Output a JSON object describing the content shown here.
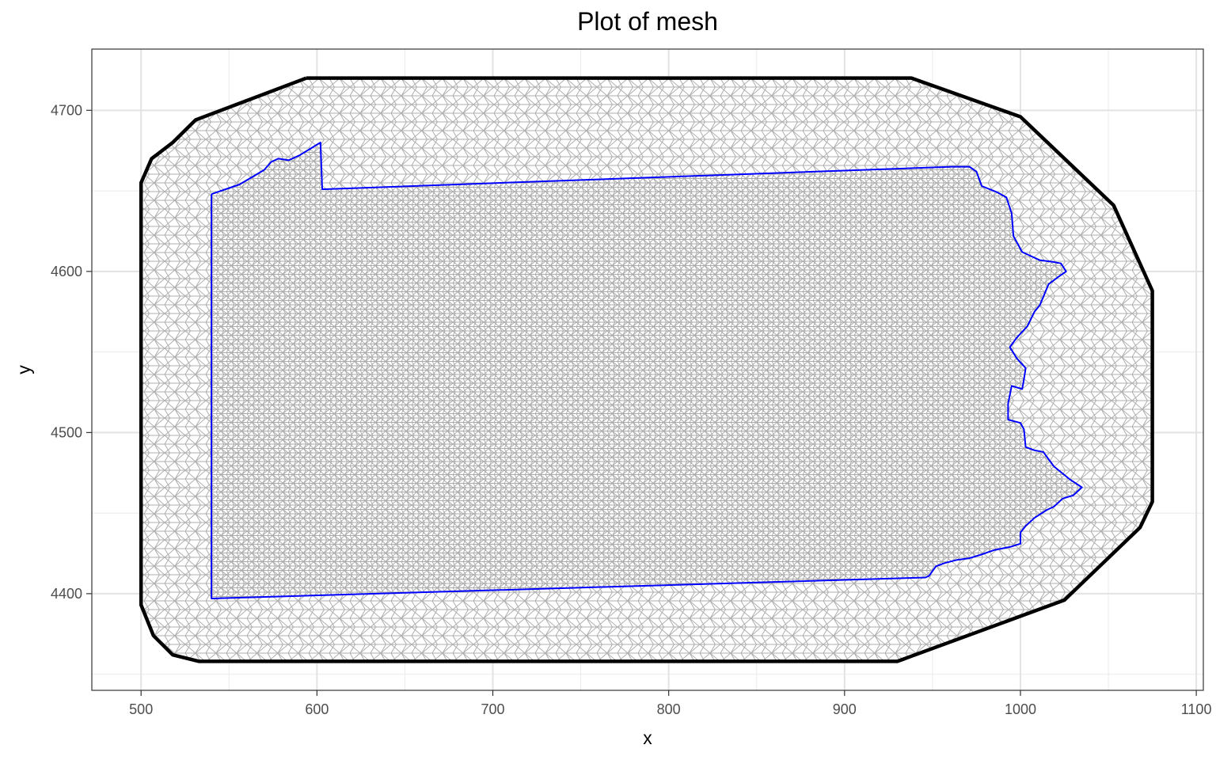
{
  "chart_data": {
    "type": "mesh",
    "title": "Plot of mesh",
    "xlabel": "x",
    "ylabel": "y",
    "xlim": [
      472,
      1104
    ],
    "ylim": [
      4340,
      4738
    ],
    "x_ticks": [
      500,
      600,
      700,
      800,
      900,
      1000,
      1100
    ],
    "x_tick_labels": [
      "500",
      "600",
      "700",
      "800",
      "900",
      "1000",
      "1100"
    ],
    "y_ticks": [
      4400,
      4500,
      4600,
      4700
    ],
    "y_tick_labels": [
      "4400",
      "4500",
      "4600",
      "4700"
    ],
    "grid": true,
    "mesh_color": "#aaaaaa",
    "outer_boundary_color": "#000000",
    "inner_boundary_color": "#0000ff",
    "outer_boundary": [
      [
        594,
        4720
      ],
      [
        938,
        4720
      ],
      [
        1000,
        4696
      ],
      [
        1053,
        4641
      ],
      [
        1075,
        4588
      ],
      [
        1075,
        4457
      ],
      [
        1068,
        4441
      ],
      [
        1025,
        4396
      ],
      [
        930,
        4358
      ],
      [
        533,
        4358
      ],
      [
        518,
        4362
      ],
      [
        507,
        4374
      ],
      [
        500,
        4393
      ],
      [
        500,
        4655
      ],
      [
        506,
        4670
      ],
      [
        518,
        4680
      ],
      [
        531,
        4694
      ],
      [
        594,
        4720
      ]
    ],
    "inner_boundary": [
      [
        540,
        4648
      ],
      [
        556,
        4654
      ],
      [
        570,
        4663
      ],
      [
        574,
        4668
      ],
      [
        578,
        4670
      ],
      [
        584,
        4669
      ],
      [
        590,
        4672
      ],
      [
        602,
        4680
      ],
      [
        603,
        4651
      ],
      [
        961,
        4665
      ],
      [
        971,
        4665
      ],
      [
        975,
        4662
      ],
      [
        978,
        4653
      ],
      [
        987,
        4649
      ],
      [
        992,
        4646
      ],
      [
        995,
        4636
      ],
      [
        996,
        4622
      ],
      [
        1001,
        4612
      ],
      [
        1011,
        4607
      ],
      [
        1018,
        4606
      ],
      [
        1023,
        4605
      ],
      [
        1026,
        4600
      ],
      [
        1022,
        4597
      ],
      [
        1016,
        4592
      ],
      [
        1011,
        4579
      ],
      [
        1008,
        4575
      ],
      [
        1004,
        4566
      ],
      [
        998,
        4559
      ],
      [
        994,
        4553
      ],
      [
        998,
        4546
      ],
      [
        1003,
        4540
      ],
      [
        1002,
        4533
      ],
      [
        1001,
        4527
      ],
      [
        995,
        4529
      ],
      [
        993,
        4518
      ],
      [
        993,
        4508
      ],
      [
        1000,
        4506
      ],
      [
        1002,
        4502
      ],
      [
        1003,
        4491
      ],
      [
        1008,
        4489
      ],
      [
        1013,
        4488
      ],
      [
        1019,
        4479
      ],
      [
        1028,
        4471
      ],
      [
        1035,
        4466
      ],
      [
        1030,
        4461
      ],
      [
        1024,
        4459
      ],
      [
        1019,
        4454
      ],
      [
        1015,
        4452
      ],
      [
        1008,
        4447
      ],
      [
        1003,
        4442
      ],
      [
        1000,
        4438
      ],
      [
        1000,
        4431
      ],
      [
        994,
        4429
      ],
      [
        985,
        4427
      ],
      [
        977,
        4424
      ],
      [
        971,
        4422
      ],
      [
        964,
        4421
      ],
      [
        957,
        4419
      ],
      [
        952,
        4417
      ],
      [
        948,
        4411
      ],
      [
        946,
        4410
      ],
      [
        540,
        4397
      ],
      [
        540,
        4648
      ]
    ]
  }
}
